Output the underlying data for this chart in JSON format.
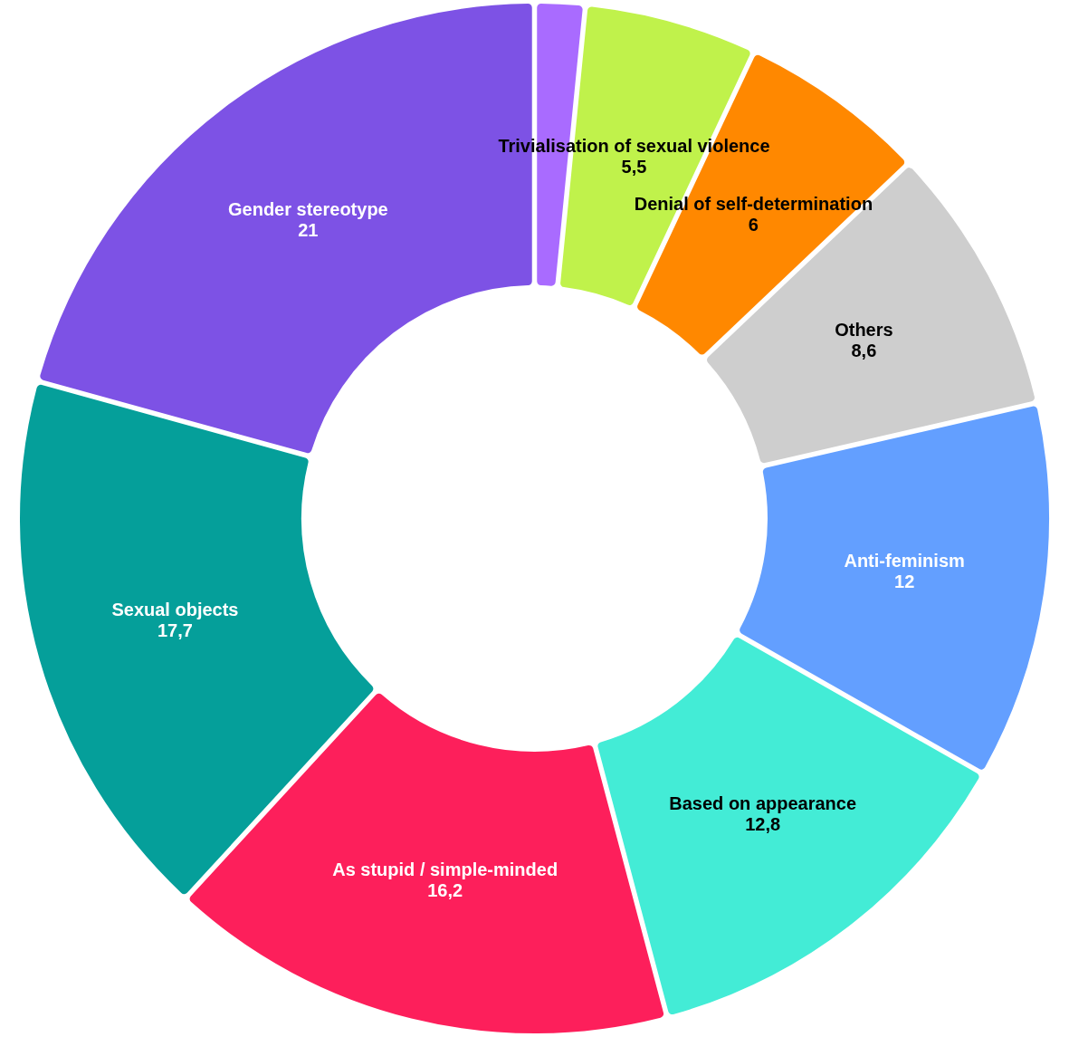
{
  "chart_data": {
    "type": "donut",
    "categories": [
      null,
      "Trivialisation of sexual violence",
      "Denial of self-determination",
      "Others",
      "Anti-feminism",
      "Based on appearance",
      "As stupid / simple-minded",
      "Sexual objects",
      "Gender stereotype"
    ],
    "values": [
      1.6,
      5.5,
      6,
      8.6,
      12,
      12.8,
      16.2,
      17.7,
      21
    ],
    "colors": [
      "#a96bff",
      "#c0f24b",
      "#ff8800",
      "#cecece",
      "#639fff",
      "#43ecd6",
      "#fd1f5b",
      "#059f9a",
      "#7d52e5"
    ],
    "value_labels": [
      null,
      "5,5",
      "6",
      "8,6",
      "12",
      "12,8",
      "16,2",
      "17,7",
      "21"
    ]
  }
}
